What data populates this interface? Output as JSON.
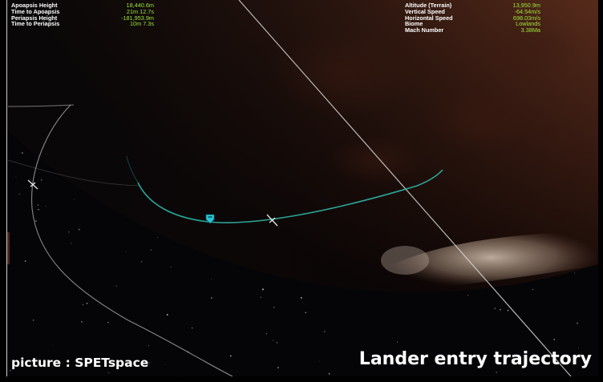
{
  "orbit_readout": [
    {
      "label": "Apoapsis Height",
      "value": "18,440.6m"
    },
    {
      "label": "Time to Apoapsis",
      "value": "21m 12.7s"
    },
    {
      "label": "Periapsis Height",
      "value": "-181,953.9m"
    },
    {
      "label": "Time to Periapsis",
      "value": "10m 7.3s"
    }
  ],
  "surface_readout": [
    {
      "label": "Altitude (Terrain)",
      "value": "13,950.9m"
    },
    {
      "label": "Vertical Speed",
      "value": "-64.54m/s"
    },
    {
      "label": "Horizontal Speed",
      "value": "698.03m/s"
    },
    {
      "label": "Biome",
      "value": "Lowlands"
    },
    {
      "label": "Mach Number",
      "value": "3.38Ma"
    }
  ],
  "credit": "picture : SPETspace",
  "title": "Lander entry trajectory",
  "colors": {
    "label_text": "#ffffff",
    "value_text": "#9ee63a",
    "trajectory": "#2fb7a8",
    "orbit_lines": "#cfcfcf",
    "planet": "#8a4a2c"
  },
  "icons": {
    "vessel_marker": "vessel-marker-icon",
    "node_markers": "node-marker-icon"
  }
}
